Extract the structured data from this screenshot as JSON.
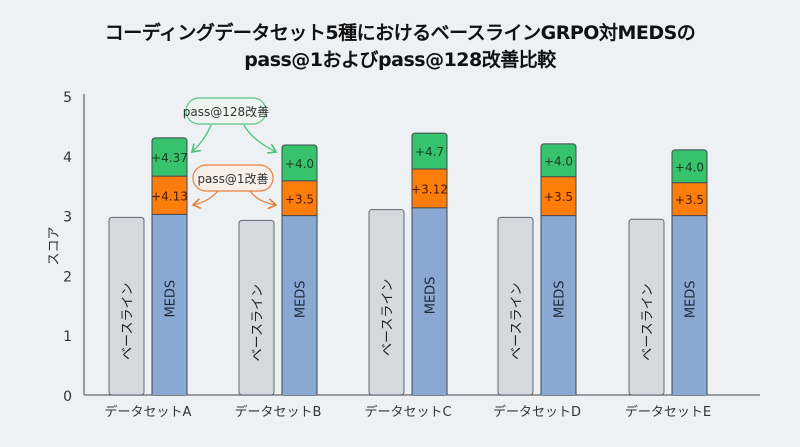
{
  "chart_data": {
    "type": "bar",
    "title": "コーディングデータセット5種におけるベースラインGRPO対MEDSの",
    "subtitle": "pass@1およびpass@128改善比較",
    "xlabel": "",
    "ylabel": "スコア",
    "ylim": [
      0,
      5
    ],
    "yticks": [
      "0",
      "1",
      "2",
      "3",
      "4",
      "5"
    ],
    "grid": false,
    "categories": [
      "データセットA",
      "データセットB",
      "データセットC",
      "データセットD",
      "データセットE"
    ],
    "series": [
      {
        "name": "ベースライン",
        "color": "#d3d9df",
        "values": [
          2.97,
          2.92,
          3.1,
          2.97,
          2.94
        ]
      },
      {
        "name": "MEDS",
        "color": "#8aa9d2",
        "values": [
          3.02,
          3.0,
          3.13,
          3.0,
          3.0
        ]
      },
      {
        "name": "pass@1改善",
        "color": "#fd7d0a",
        "top": [
          3.66,
          3.58,
          3.78,
          3.65,
          3.55
        ],
        "labels": [
          "+4.13",
          "+3.5",
          "+3.12",
          "+3.5",
          "+3.5"
        ]
      },
      {
        "name": "pass@128改善",
        "color": "#37c26c",
        "top": [
          4.3,
          4.18,
          4.38,
          4.2,
          4.1
        ],
        "labels": [
          "+4.37",
          "+4.0",
          "+4.7",
          "+4.0",
          "+4.0"
        ]
      }
    ],
    "annotations": [
      {
        "text": "pass@128改善",
        "color": "#37c26c"
      },
      {
        "text": "pass@1改善",
        "color": "#e5823a"
      }
    ]
  },
  "bar_labels": {
    "baseline": "ベースライン",
    "meds": "MEDS"
  }
}
